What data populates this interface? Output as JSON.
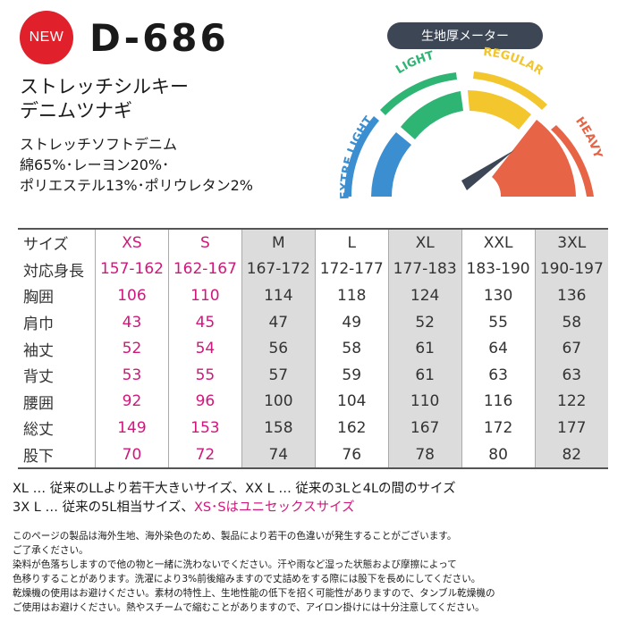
{
  "badge": "NEW",
  "model": "D-686",
  "product_name": [
    "ストレッチシルキー",
    "デニムツナギ"
  ],
  "description": [
    "ストレッチソフトデニム",
    "綿65%･レーヨン20%･",
    "ポリエステル13%･ポリウレタン2%"
  ],
  "meter": {
    "title": "生地厚メーター",
    "levels": [
      "EXTRE LIGHT",
      "LIGHT",
      "REGULAR",
      "HEAVY"
    ],
    "level_colors": [
      "#3b8fd1",
      "#2eb574",
      "#f2c62c",
      "#e86446"
    ],
    "selected": "HEAVY"
  },
  "size_table": {
    "header_label": "サイズ",
    "sizes": [
      "XS",
      "S",
      "M",
      "L",
      "XL",
      "XXL",
      "3XL"
    ],
    "rows": [
      {
        "label": "対応身長",
        "values": [
          "157-162",
          "162-167",
          "167-172",
          "172-177",
          "177-183",
          "183-190",
          "190-197"
        ]
      },
      {
        "label": "胸囲",
        "values": [
          "106",
          "110",
          "114",
          "118",
          "124",
          "130",
          "136"
        ]
      },
      {
        "label": "肩巾",
        "values": [
          "43",
          "45",
          "47",
          "49",
          "52",
          "55",
          "58"
        ]
      },
      {
        "label": "袖丈",
        "values": [
          "52",
          "54",
          "56",
          "58",
          "61",
          "64",
          "67"
        ]
      },
      {
        "label": "背丈",
        "values": [
          "53",
          "55",
          "57",
          "59",
          "61",
          "63",
          "63"
        ]
      },
      {
        "label": "腰囲",
        "values": [
          "92",
          "96",
          "100",
          "104",
          "110",
          "116",
          "122"
        ]
      },
      {
        "label": "総丈",
        "values": [
          "149",
          "153",
          "158",
          "162",
          "167",
          "172",
          "177"
        ]
      },
      {
        "label": "股下",
        "values": [
          "70",
          "72",
          "74",
          "76",
          "78",
          "80",
          "82"
        ]
      }
    ]
  },
  "notes": {
    "line1": "XL … 従来のLLより若干大きいサイズ、XX L … 従来の3Lと4Lの間のサイズ",
    "line2_prefix": "3X L … 従来の5L相当サイズ、",
    "line2_highlight": "XS･Sはユニセックスサイズ"
  },
  "fine_print": [
    "このページの製品は海外生地、海外染色のため、製品により若干の色違いが発生することがございます。",
    "ご了承ください。",
    "染料が色落ちしますので他の物と一緒に洗わないでください。汗や雨など湿った状態および摩擦によって",
    "色移りすることがあります。洗濯により3%前後縮みますので丈詰めをする際には股下を長めにしてください。",
    "乾燥機の使用はお避けください。素材の特性上、生地性能の低下を招く可能性がありますので、タンブル乾燥機の",
    "ご使用はお避けください。熱やスチームで縮むことがありますので、アイロン掛けには十分注意してください。"
  ]
}
